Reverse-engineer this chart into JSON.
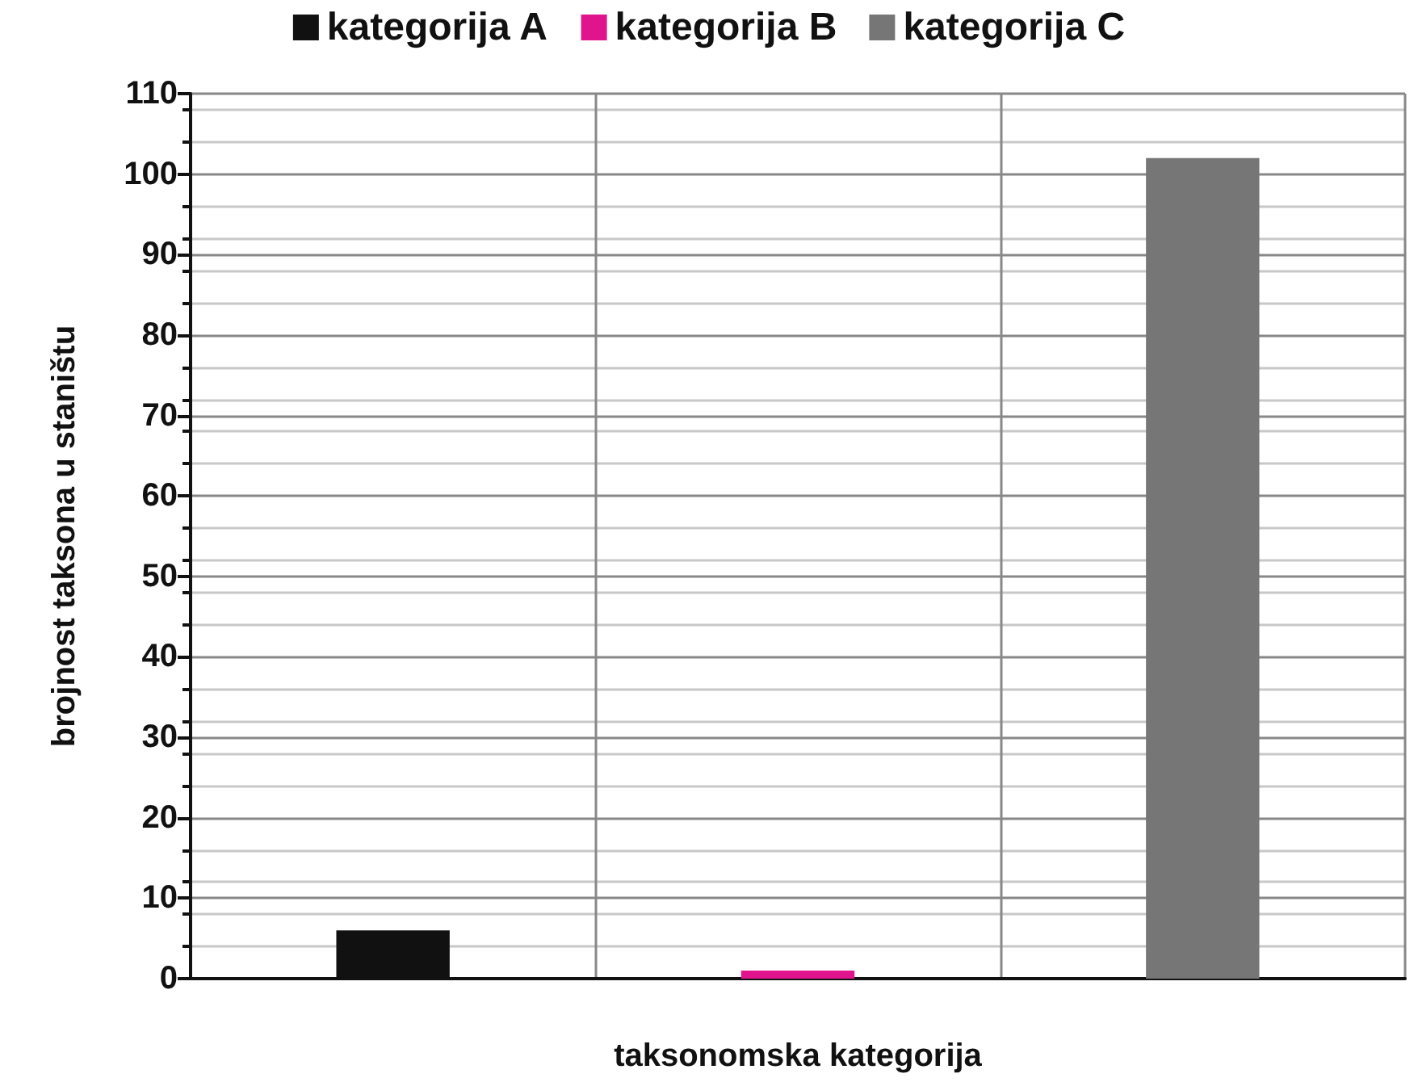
{
  "chart_data": {
    "type": "bar",
    "xlabel": "taksonomska kategorija",
    "ylabel": "brojnost taksona u staništu",
    "categories": [
      null,
      null,
      null
    ],
    "series": [
      {
        "name": "kategorija A",
        "color": "#111111",
        "values": [
          6,
          null,
          null
        ]
      },
      {
        "name": "kategorija B",
        "color": "#e0148c",
        "values": [
          null,
          1,
          null
        ]
      },
      {
        "name": "kategorija C",
        "color": "#767676",
        "values": [
          null,
          null,
          102
        ]
      }
    ],
    "ylim": [
      0,
      110
    ],
    "yticks": [
      0,
      10,
      20,
      30,
      40,
      50,
      60,
      70,
      80,
      90,
      100,
      110
    ],
    "grid": true,
    "legend": "top"
  }
}
